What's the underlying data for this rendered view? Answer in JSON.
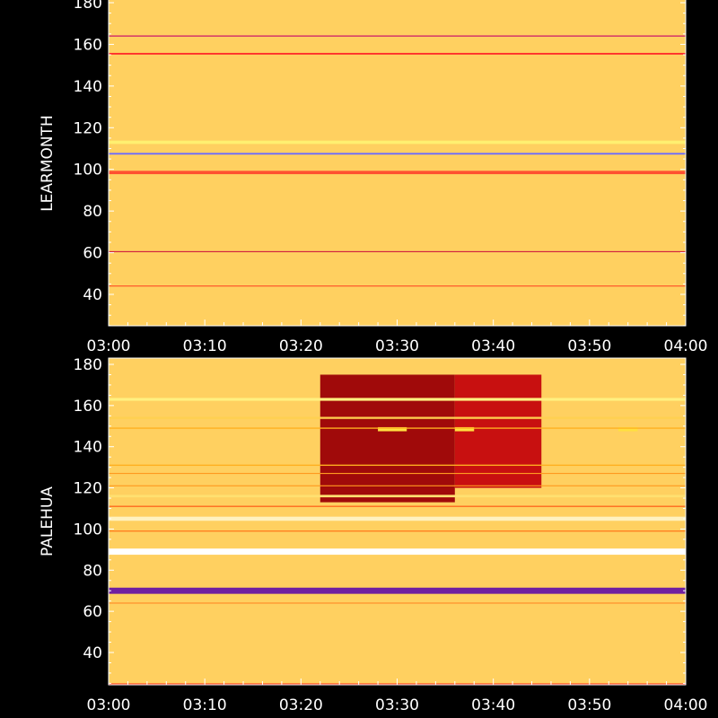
{
  "chart_data": [
    {
      "type": "heatmap",
      "station": "LEARMONTH",
      "ylabel": "LEARMONTH",
      "xlabel": "",
      "x_range": [
        "03:00",
        "04:00"
      ],
      "x_ticks": [
        "03:00",
        "03:10",
        "03:20",
        "03:30",
        "03:40",
        "03:50",
        "04:00"
      ],
      "ylim": [
        25,
        180
      ],
      "y_ticks": [
        40,
        60,
        80,
        100,
        120,
        140,
        160,
        180
      ],
      "gradient_by_y": [
        {
          "y": 25,
          "color": "#ffd060"
        },
        {
          "y": 30,
          "color": "#ff5a10"
        },
        {
          "y": 38,
          "color": "#d42020"
        },
        {
          "y": 48,
          "color": "#8a1a80"
        },
        {
          "y": 58,
          "color": "#5018b0"
        },
        {
          "y": 68,
          "color": "#1414e6"
        },
        {
          "y": 90,
          "color": "#1c1cff"
        },
        {
          "y": 130,
          "color": "#0c0c80"
        },
        {
          "y": 160,
          "color": "#0a0a60"
        },
        {
          "y": 170,
          "color": "#14148a"
        },
        {
          "y": 180,
          "color": "#3030ff"
        }
      ],
      "lines": [
        {
          "y": 98.5,
          "color": "#ff5030",
          "width_mhz": 1.6
        },
        {
          "y": 113,
          "color": "#fff070",
          "width_mhz": 1.6
        },
        {
          "y": 107.5,
          "color": "#6a6aff",
          "width_mhz": 0.8
        },
        {
          "y": 155.5,
          "color": "#ff2a2a",
          "width_mhz": 0.8
        },
        {
          "y": 164,
          "color": "#d02a6a",
          "width_mhz": 0.6
        },
        {
          "y": 60.5,
          "color": "#d02040",
          "width_mhz": 0.5
        },
        {
          "y": 44,
          "color": "#ff4020",
          "width_mhz": 0.4
        }
      ],
      "blocks": []
    },
    {
      "type": "heatmap",
      "station": "PALEHUA",
      "ylabel": "PALEHUA",
      "xlabel": "",
      "x_range": [
        "03:00",
        "04:00"
      ],
      "x_ticks": [
        "03:00",
        "03:10",
        "03:20",
        "03:30",
        "03:40",
        "03:50",
        "04:00"
      ],
      "ylim": [
        25,
        180
      ],
      "y_ticks": [
        40,
        60,
        80,
        100,
        120,
        140,
        160,
        180
      ],
      "gradient_by_y": [
        {
          "y": 25,
          "color": "#ffd060"
        },
        {
          "y": 32,
          "color": "#ff7010"
        },
        {
          "y": 45,
          "color": "#ff2a10"
        },
        {
          "y": 65,
          "color": "#d01818"
        },
        {
          "y": 75,
          "color": "#e01a1a"
        },
        {
          "y": 100,
          "color": "#ee1c10"
        },
        {
          "y": 140,
          "color": "#ff2410"
        },
        {
          "y": 180,
          "color": "#ff2810"
        }
      ],
      "lines": [
        {
          "y": 89,
          "color": "#ffffff",
          "width_mhz": 3.0
        },
        {
          "y": 105,
          "color": "#fff2c0",
          "width_mhz": 2.0
        },
        {
          "y": 116,
          "color": "#ffe070",
          "width_mhz": 1.2
        },
        {
          "y": 163,
          "color": "#fff080",
          "width_mhz": 1.4
        },
        {
          "y": 154,
          "color": "#ffd050",
          "width_mhz": 1.0
        },
        {
          "y": 149,
          "color": "#ffb020",
          "width_mhz": 0.6
        },
        {
          "y": 131,
          "color": "#ffb020",
          "width_mhz": 0.6
        },
        {
          "y": 127,
          "color": "#ff9a20",
          "width_mhz": 0.5
        },
        {
          "y": 121,
          "color": "#ff9a20",
          "width_mhz": 0.5
        },
        {
          "y": 99,
          "color": "#ff8020",
          "width_mhz": 0.6
        },
        {
          "y": 111,
          "color": "#ff6a20",
          "width_mhz": 0.6
        },
        {
          "y": 70,
          "color": "#7020a0",
          "width_mhz": 3.0
        },
        {
          "y": 64,
          "color": "#ff8020",
          "width_mhz": 0.4
        }
      ],
      "blocks": [
        {
          "x0": "03:22",
          "x1": "03:36",
          "y0": 113,
          "y1": 175,
          "color": "#a00a0a"
        },
        {
          "x0": "03:36",
          "x1": "03:45",
          "y0": 120,
          "y1": 175,
          "color": "#c81010"
        },
        {
          "x0": "03:28",
          "x1": "03:31",
          "y0": 147.5,
          "y1": 149.5,
          "color": "#ffe040"
        },
        {
          "x0": "03:36",
          "x1": "03:38",
          "y0": 147.5,
          "y1": 149.5,
          "color": "#ffe040"
        },
        {
          "x0": "03:53",
          "x1": "03:55",
          "y0": 147.5,
          "y1": 149.5,
          "color": "#ffe040"
        }
      ]
    }
  ]
}
